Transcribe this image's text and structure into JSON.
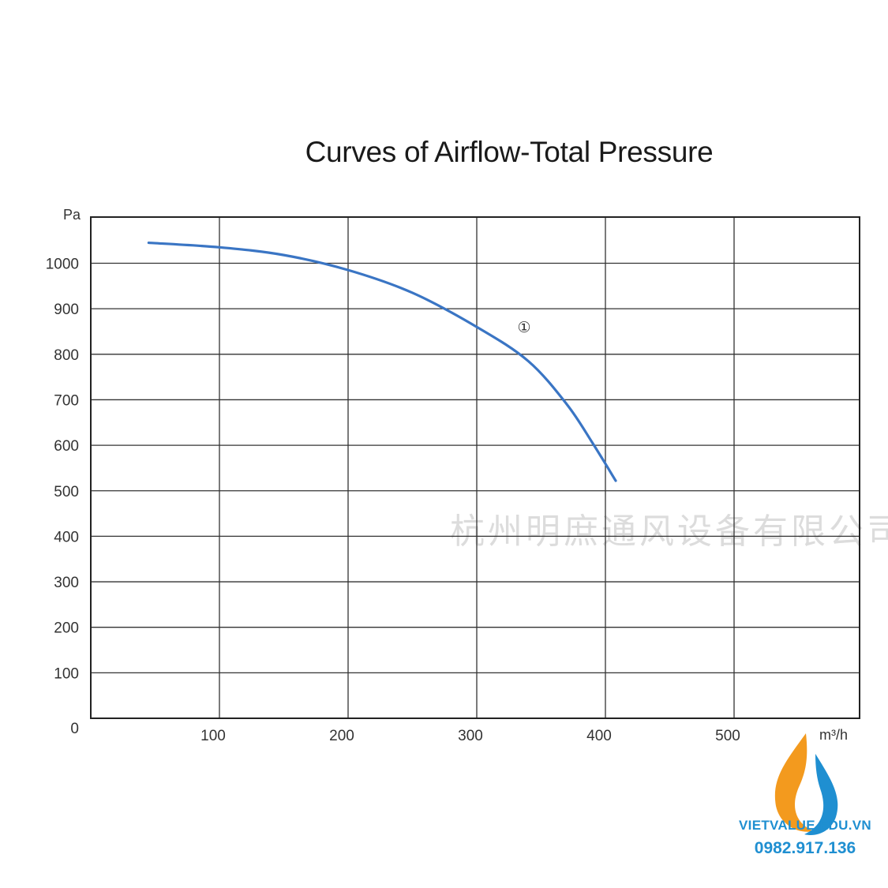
{
  "chart_data": {
    "type": "line",
    "title": "Curves of Airflow-Total Pressure",
    "xlabel": "m³/h",
    "ylabel": "Pa",
    "x_ticks": [
      "100",
      "200",
      "300",
      "400",
      "500"
    ],
    "y_ticks": [
      "0",
      "100",
      "200",
      "300",
      "400",
      "500",
      "600",
      "700",
      "800",
      "900",
      "1000"
    ],
    "xlim": [
      0,
      600
    ],
    "ylim": [
      0,
      1100
    ],
    "grid": true,
    "series": [
      {
        "name": "①",
        "color": "#3a75c4",
        "x": [
          45,
          100,
          150,
          200,
          250,
          300,
          340,
          370,
          390,
          408
        ],
        "y": [
          1045,
          1035,
          1018,
          985,
          935,
          860,
          785,
          690,
          605,
          522
        ]
      }
    ],
    "annotations": [
      {
        "text": "①",
        "x": 335,
        "y": 855
      }
    ]
  },
  "watermark": "杭州明庶通风设备有限公司",
  "brand": {
    "name": "VIETVALUE.EDU.VN",
    "phone": "0982.917.136",
    "colors": {
      "blue": "#1f8fd1",
      "orange": "#f39a1e"
    }
  }
}
